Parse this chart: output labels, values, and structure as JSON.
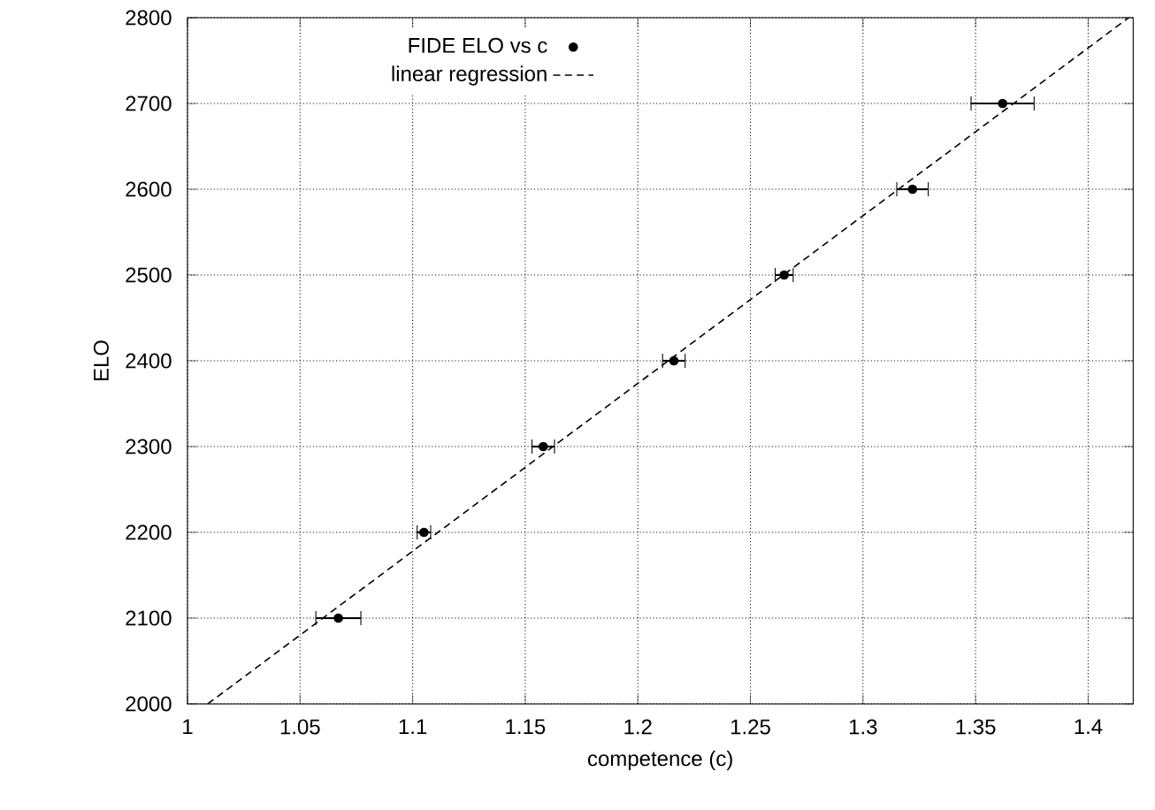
{
  "chart_data": {
    "type": "scatter",
    "xlabel": "competence (c)",
    "ylabel": "ELO",
    "xlim": [
      1,
      1.42
    ],
    "ylim": [
      2000,
      2800
    ],
    "xticks": [
      1,
      1.05,
      1.1,
      1.15,
      1.2,
      1.25,
      1.3,
      1.35,
      1.4
    ],
    "yticks": [
      2000,
      2100,
      2200,
      2300,
      2400,
      2500,
      2600,
      2700,
      2800
    ],
    "grid": true,
    "legend": "top",
    "marker": "circle",
    "series": [
      {
        "name": "FIDE ELO vs c",
        "color": "#000000",
        "x": [
          1.067,
          1.105,
          1.158,
          1.216,
          1.265,
          1.322,
          1.362
        ],
        "values": [
          2100,
          2200,
          2300,
          2400,
          2500,
          2600,
          2700
        ],
        "xerrors": [
          0.01,
          0.003,
          0.005,
          0.005,
          0.004,
          0.007,
          0.014
        ]
      },
      {
        "name": "linear regression",
        "type": "line",
        "color": "#000000",
        "line_style": "dashed",
        "marker": "none",
        "x": [
          1.009,
          1.418
        ],
        "values": [
          2000,
          2800
        ]
      }
    ]
  }
}
